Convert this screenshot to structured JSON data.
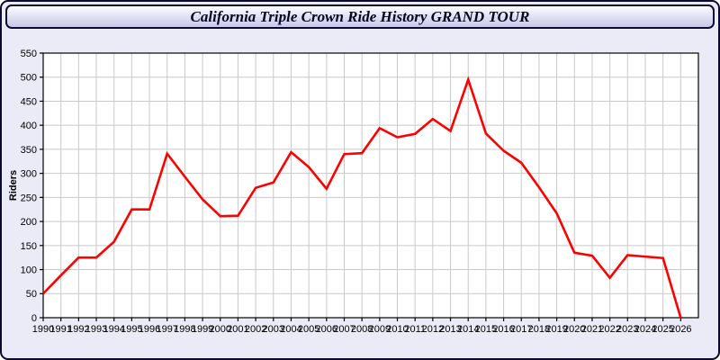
{
  "window": {
    "title": "California Triple Crown Ride History GRAND TOUR"
  },
  "colors": {
    "line": "#ff0000",
    "page_bg": "#ebebf8",
    "plot_bg": "#ffffff",
    "grid": "#c9c9c9",
    "axis": "#000000",
    "frame_border": "#0a0a33",
    "label_text": "#000000"
  },
  "chart_data": {
    "type": "line",
    "title": "California Triple Crown Ride History GRAND TOUR",
    "xlabel": "",
    "ylabel": "Riders",
    "x": [
      1990,
      1991,
      1992,
      1993,
      1994,
      1995,
      1996,
      1997,
      1998,
      1999,
      2000,
      2001,
      2002,
      2003,
      2004,
      2005,
      2006,
      2007,
      2008,
      2009,
      2010,
      2011,
      2012,
      2013,
      2014,
      2015,
      2016,
      2017,
      2018,
      2019,
      2020,
      2021,
      2022,
      2023,
      2024,
      2025,
      2026
    ],
    "series": [
      {
        "name": "Riders",
        "color": "#ff0000",
        "values": [
          50,
          88,
          125,
          125,
          158,
          225,
          225,
          341,
          293,
          246,
          211,
          212,
          270,
          281,
          344,
          313,
          268,
          340,
          342,
          394,
          375,
          382,
          413,
          388,
          495,
          383,
          347,
          322,
          271,
          217,
          135,
          129,
          83,
          130,
          127,
          124,
          0
        ]
      }
    ],
    "ylim": [
      0,
      550
    ],
    "ytick_step": 50,
    "grid": true,
    "legend": false
  }
}
